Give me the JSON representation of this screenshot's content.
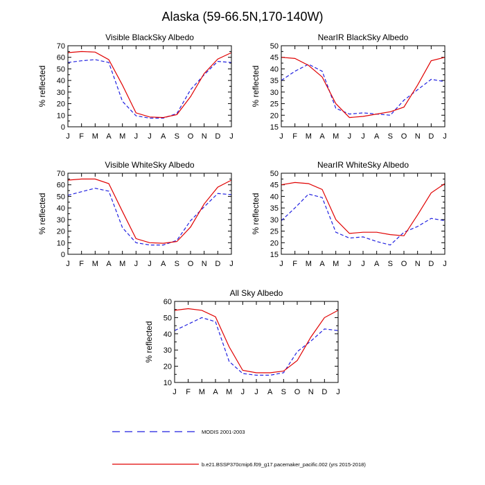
{
  "title": "Alaska (59-66.5N,170-140W)",
  "colors": {
    "modis": "#1f1fe0",
    "model": "#e00000",
    "axis": "#000000"
  },
  "legend": [
    {
      "series": "modis",
      "label": "MODIS 2001-2003",
      "style": "dashed"
    },
    {
      "series": "model",
      "label": "b.e21.BSSP370cmip6.f09_g17.pacemaker_pacific.002 (yrs 2015-2018)",
      "style": "solid"
    }
  ],
  "chart_data": [
    {
      "type": "line",
      "title": "Visible BlackSky Albedo",
      "ylabel": "% reflected",
      "xlabel": "",
      "categories": [
        "J",
        "F",
        "M",
        "A",
        "M",
        "J",
        "J",
        "A",
        "S",
        "O",
        "N",
        "D",
        "J"
      ],
      "ylim": [
        0,
        70
      ],
      "yticks": [
        0,
        10,
        20,
        30,
        40,
        50,
        60,
        70
      ],
      "series": [
        {
          "name": "MODIS 2001-2003",
          "key": "modis",
          "values": [
            55.5,
            57,
            58,
            55.5,
            22,
            9.5,
            7.5,
            7.5,
            11.5,
            32,
            45,
            56.5,
            55.5
          ]
        },
        {
          "name": "b.e21.BSSP370cmip6.f09_g17.pacemaker_pacific.002 (yrs 2015-2018)",
          "key": "model",
          "values": [
            64,
            65,
            64.5,
            58,
            36,
            12,
            8.5,
            8,
            10.5,
            26,
            46,
            58.5,
            64
          ]
        }
      ]
    },
    {
      "type": "line",
      "title": "NearIR BlackSky Albedo",
      "ylabel": "% reflected",
      "xlabel": "",
      "categories": [
        "J",
        "F",
        "M",
        "A",
        "M",
        "J",
        "J",
        "A",
        "S",
        "O",
        "N",
        "D",
        "J"
      ],
      "ylim": [
        15,
        50
      ],
      "yticks": [
        15,
        20,
        25,
        30,
        35,
        40,
        45,
        50
      ],
      "series": [
        {
          "name": "MODIS 2001-2003",
          "key": "modis",
          "values": [
            35,
            39,
            42,
            39,
            23,
            20.5,
            21,
            20.5,
            20,
            26.5,
            31,
            35.5,
            34.5
          ]
        },
        {
          "name": "b.e21.BSSP370cmip6.f09_g17.pacemaker_pacific.002 (yrs 2015-2018)",
          "key": "model",
          "values": [
            45,
            44.5,
            41.5,
            36.5,
            25,
            19,
            19.5,
            20.5,
            21.5,
            23.5,
            33,
            43.5,
            45
          ]
        }
      ]
    },
    {
      "type": "line",
      "title": "Visible WhiteSky Albedo",
      "ylabel": "% reflected",
      "xlabel": "",
      "categories": [
        "J",
        "F",
        "M",
        "A",
        "M",
        "J",
        "J",
        "A",
        "S",
        "O",
        "N",
        "D",
        "J"
      ],
      "ylim": [
        0,
        70
      ],
      "yticks": [
        0,
        10,
        20,
        30,
        40,
        50,
        60,
        70
      ],
      "series": [
        {
          "name": "MODIS 2001-2003",
          "key": "modis",
          "values": [
            51,
            54,
            57,
            54.5,
            23,
            10,
            8,
            8,
            12,
            29,
            41,
            52.5,
            51.5
          ]
        },
        {
          "name": "b.e21.BSSP370cmip6.f09_g17.pacemaker_pacific.002 (yrs 2015-2018)",
          "key": "model",
          "values": [
            64,
            65,
            65,
            61,
            37,
            13.5,
            10,
            9.5,
            11,
            23.5,
            43.5,
            58,
            64
          ]
        }
      ]
    },
    {
      "type": "line",
      "title": "NearIR WhiteSky Albedo",
      "ylabel": "% reflected",
      "xlabel": "",
      "categories": [
        "J",
        "F",
        "M",
        "A",
        "M",
        "J",
        "J",
        "A",
        "S",
        "O",
        "N",
        "D",
        "J"
      ],
      "ylim": [
        15,
        50
      ],
      "yticks": [
        15,
        20,
        25,
        30,
        35,
        40,
        45,
        50
      ],
      "series": [
        {
          "name": "MODIS 2001-2003",
          "key": "modis",
          "values": [
            29.5,
            35,
            41,
            39.5,
            24.5,
            22,
            22.5,
            20.5,
            19,
            24.5,
            27,
            30.5,
            29.5
          ]
        },
        {
          "name": "b.e21.BSSP370cmip6.f09_g17.pacemaker_pacific.002 (yrs 2015-2018)",
          "key": "model",
          "values": [
            45,
            46,
            45.5,
            43,
            30,
            24,
            24.5,
            24.5,
            23.5,
            23,
            32,
            41.5,
            45.5
          ]
        }
      ]
    },
    {
      "type": "line",
      "title": "All Sky Albedo",
      "ylabel": "% reflected",
      "xlabel": "",
      "categories": [
        "J",
        "F",
        "M",
        "A",
        "M",
        "J",
        "J",
        "A",
        "S",
        "O",
        "N",
        "D",
        "J"
      ],
      "ylim": [
        10,
        60
      ],
      "yticks": [
        10,
        20,
        30,
        40,
        50,
        60
      ],
      "series": [
        {
          "name": "MODIS 2001-2003",
          "key": "modis",
          "values": [
            42,
            46,
            50,
            47.5,
            23,
            15.5,
            14.5,
            14.5,
            16,
            29,
            35.5,
            43,
            42
          ]
        },
        {
          "name": "b.e21.BSSP370cmip6.f09_g17.pacemaker_pacific.002 (yrs 2015-2018)",
          "key": "model",
          "values": [
            54.5,
            55.5,
            54.5,
            50.5,
            32,
            17.5,
            16,
            16,
            17,
            23.5,
            38,
            50,
            54.5
          ]
        }
      ]
    }
  ]
}
